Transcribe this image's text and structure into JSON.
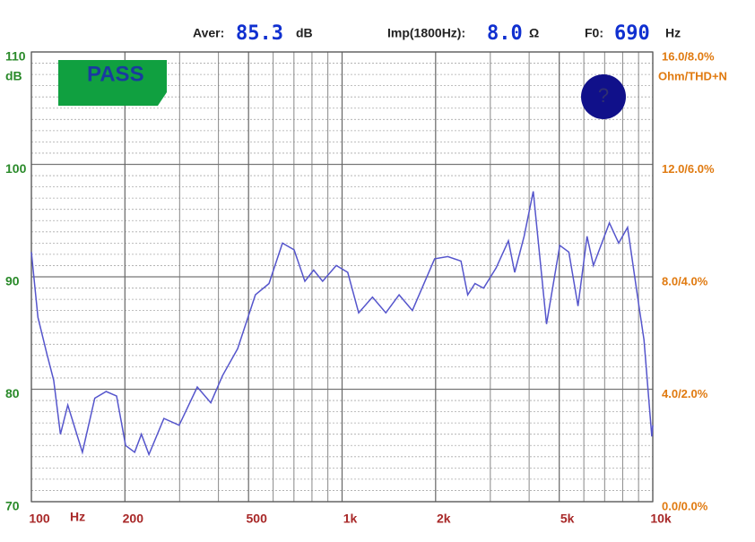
{
  "chart_data": {
    "type": "line",
    "readouts": [
      {
        "label": "Aver:",
        "value": "85.3",
        "unit": "dB"
      },
      {
        "label": "Imp(1800Hz):",
        "value": "8.0",
        "unit": "Ω"
      },
      {
        "label": "F0:",
        "value": "690",
        "unit": "Hz"
      }
    ],
    "badge": "PASS",
    "help": "?",
    "y_label": "dB",
    "y2_label": "Ohm/THD+N",
    "x_label": "Hz",
    "log_x": true,
    "grid": true,
    "color": "#5555cc",
    "x": [
      100,
      105,
      112,
      118,
      124,
      131,
      146,
      160,
      174,
      188,
      201,
      215,
      226,
      239,
      267,
      299,
      342,
      378,
      412,
      461,
      526,
      582,
      643,
      701,
      759,
      810,
      866,
      958,
      1043,
      1131,
      1253,
      1383,
      1526,
      1684,
      1986,
      2189,
      2413,
      2537,
      2677,
      2853,
      3132,
      3431,
      3594,
      3854,
      4124,
      4551,
      5020,
      5370,
      5746,
      6143,
      6442,
      7250,
      7770,
      8294,
      9006,
      9372,
      9930,
      10000
    ],
    "values": [
      92.2,
      86.4,
      83.2,
      80.8,
      76,
      78.6,
      74.4,
      79.2,
      79.8,
      79.4,
      75,
      74.4,
      76,
      74.2,
      77.4,
      76.8,
      80.2,
      78.8,
      81.2,
      83.6,
      88.4,
      89.4,
      93,
      92.4,
      89.6,
      90.6,
      89.6,
      91,
      90.4,
      86.8,
      88.2,
      86.8,
      88.4,
      87,
      91.6,
      91.8,
      91.4,
      88.4,
      89.4,
      89,
      90.8,
      93.2,
      90.4,
      93.6,
      97.6,
      85.8,
      92.8,
      92.2,
      87.4,
      93.6,
      91,
      94.8,
      93,
      94.4,
      87.6,
      84.4,
      75.8,
      76.8
    ],
    "xlim": [
      100,
      10000
    ],
    "xticks": [
      100,
      200,
      500,
      {
        "value": 1000,
        "label": "1k"
      },
      {
        "value": 2000,
        "label": "2k"
      },
      {
        "value": 5000,
        "label": "5k"
      },
      {
        "value": 10000,
        "label": "10k"
      }
    ],
    "xminor": [
      300,
      400,
      600,
      700,
      800,
      900,
      3000,
      4000,
      6000,
      7000,
      8000,
      9000
    ],
    "ylim": [
      70,
      110
    ],
    "yticks": [
      70,
      80,
      90,
      100,
      110
    ],
    "yminor": [
      71,
      72,
      73,
      74,
      75,
      76,
      77,
      78,
      79,
      81,
      82,
      83,
      84,
      85,
      86,
      87,
      88,
      89,
      91,
      92,
      93,
      94,
      95,
      96,
      97,
      98,
      99,
      101,
      102,
      103,
      104,
      105,
      106,
      107,
      108,
      109
    ],
    "y2lim": [
      0,
      16
    ],
    "y2ticks": [
      {
        "value": 0,
        "label": "0.0/0.0%"
      },
      {
        "value": 4,
        "label": "4.0/2.0%"
      },
      {
        "value": 8,
        "label": "8.0/4.0%"
      },
      {
        "value": 12,
        "label": "12.0/6.0%"
      },
      {
        "value": 16,
        "label": "16.0/8.0%"
      }
    ]
  }
}
